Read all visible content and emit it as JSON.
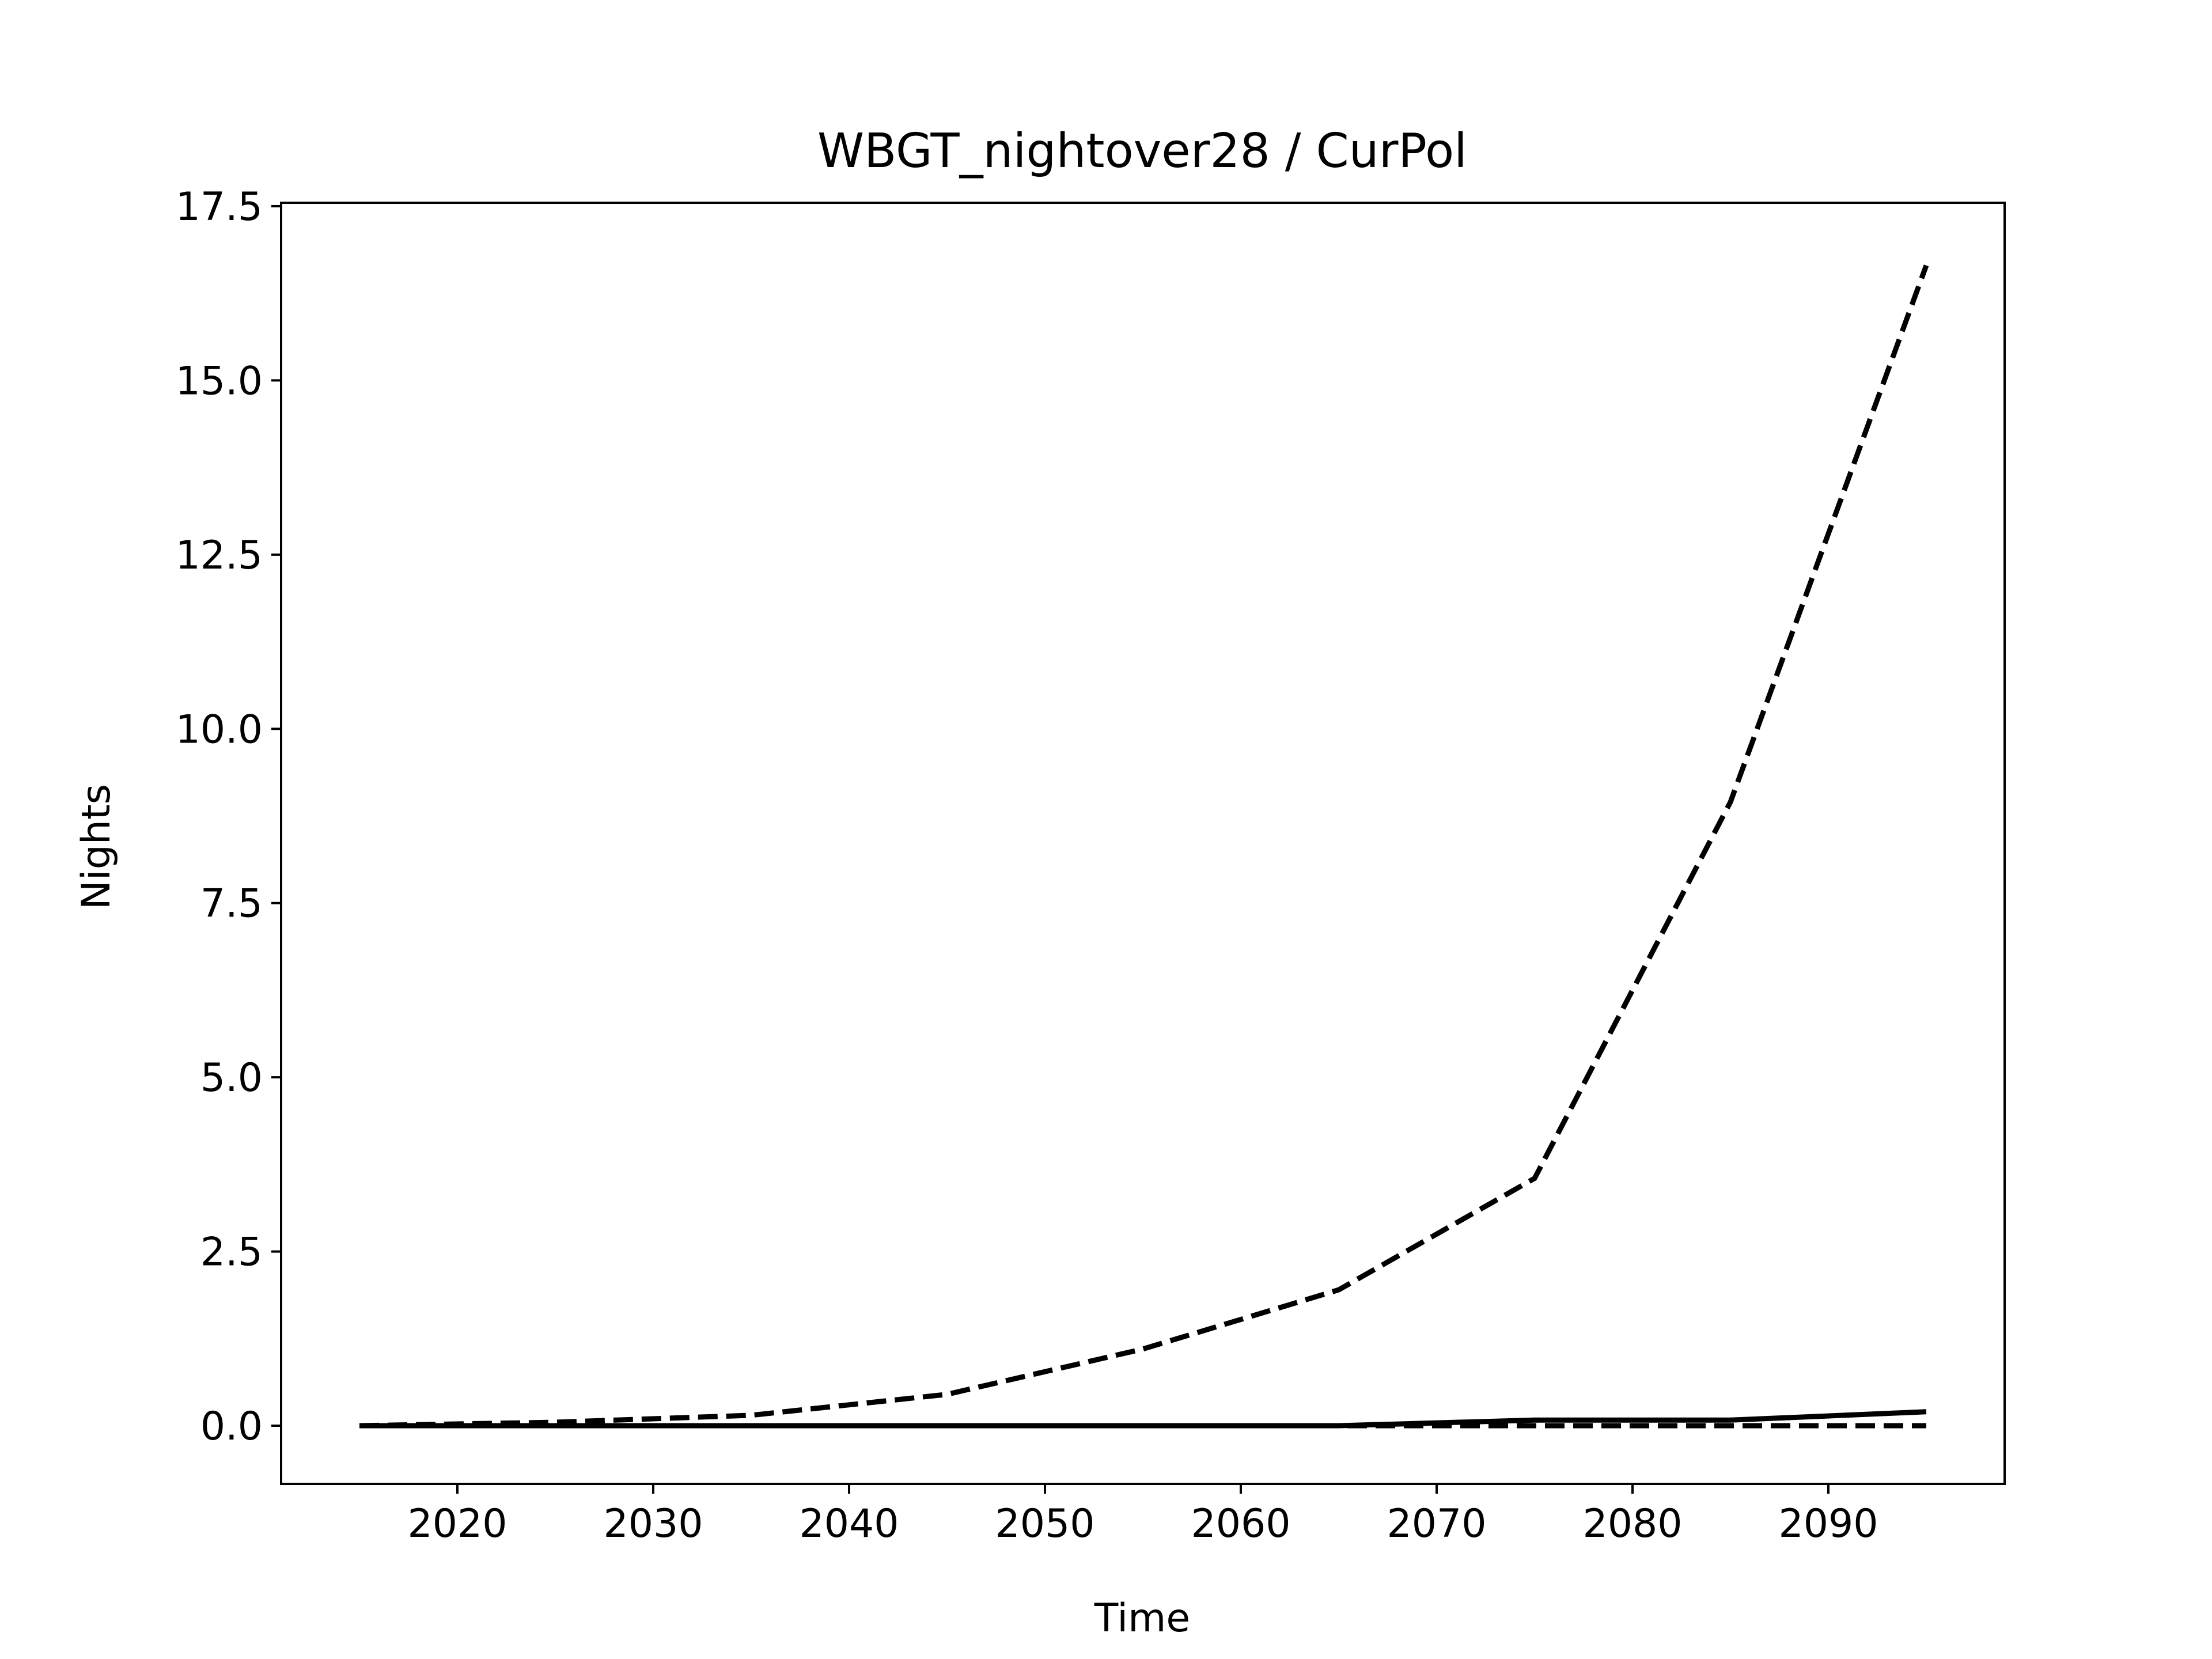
{
  "chart_data": {
    "type": "line",
    "title": "WBGT_nightover28 / CurPol",
    "xlabel": "Time",
    "ylabel": "Nights",
    "xlim": [
      2011,
      2099
    ],
    "ylim": [
      -0.83,
      17.5
    ],
    "x_ticks": [
      2020,
      2030,
      2040,
      2050,
      2060,
      2070,
      2080,
      2090
    ],
    "y_ticks": [
      0.0,
      2.5,
      5.0,
      7.5,
      10.0,
      12.5,
      15.0,
      17.5
    ],
    "y_tick_labels": [
      "0.0",
      "2.5",
      "5.0",
      "7.5",
      "10.0",
      "12.5",
      "15.0",
      "17.5"
    ],
    "grid": false,
    "legend": "none",
    "x": [
      2015,
      2025,
      2035,
      2045,
      2055,
      2065,
      2075,
      2085,
      2095
    ],
    "series": [
      {
        "style": "dashed",
        "color": "#000000",
        "values": [
          0.0,
          0.05,
          0.15,
          0.45,
          1.1,
          1.95,
          3.55,
          8.95,
          16.65
        ]
      },
      {
        "style": "solid",
        "color": "#000000",
        "values": [
          0.0,
          0.0,
          0.0,
          0.0,
          0.0,
          0.0,
          0.08,
          0.08,
          0.2
        ]
      },
      {
        "style": "dashed",
        "color": "#000000",
        "values": [
          0.0,
          0.0,
          0.0,
          0.0,
          0.0,
          0.0,
          0.0,
          0.0,
          0.0
        ]
      }
    ]
  }
}
